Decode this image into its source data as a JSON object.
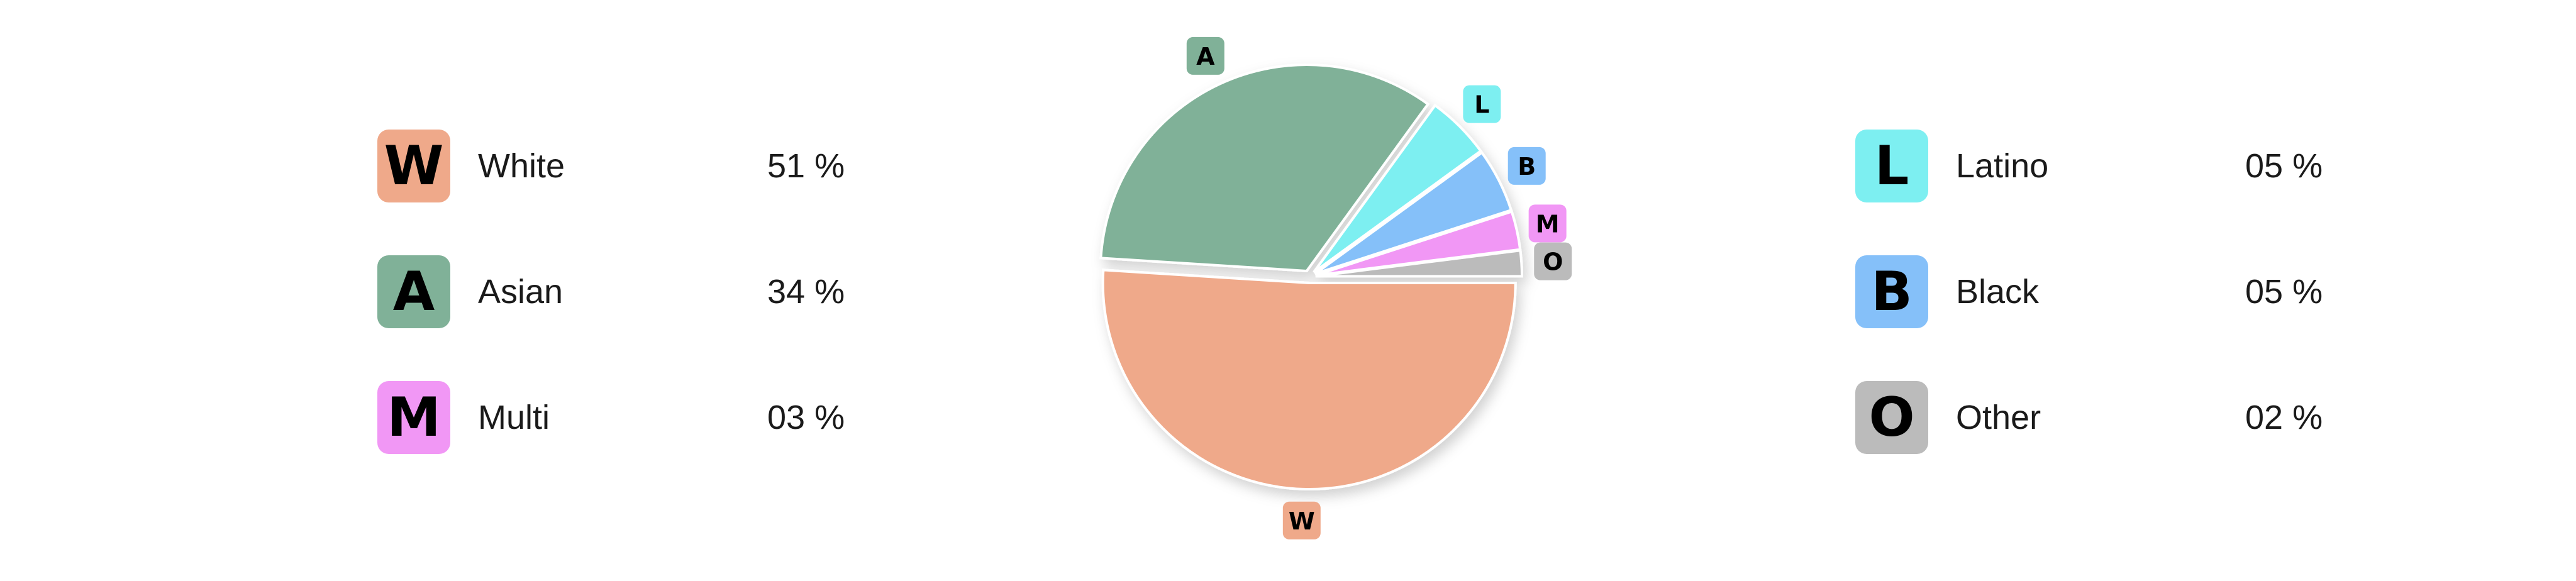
{
  "chart_data": {
    "type": "pie",
    "series": [
      {
        "code": "W",
        "name": "White",
        "value": 51,
        "label": "51 %",
        "color": "#EFA98A"
      },
      {
        "code": "A",
        "name": "Asian",
        "value": 34,
        "label": "34 %",
        "color": "#80B198"
      },
      {
        "code": "L",
        "name": "Latino",
        "value": 5,
        "label": "05 %",
        "color": "#7DEFF1"
      },
      {
        "code": "B",
        "name": "Black",
        "value": 5,
        "label": "05 %",
        "color": "#85C0F9"
      },
      {
        "code": "M",
        "name": "Multi",
        "value": 3,
        "label": "03 %",
        "color": "#F197F5"
      },
      {
        "code": "O",
        "name": "Other",
        "value": 2,
        "label": "02 %",
        "color": "#BBBBBB"
      }
    ],
    "legend_left": [
      "W",
      "A",
      "M"
    ],
    "legend_right": [
      "L",
      "B",
      "O"
    ],
    "exploded": true
  },
  "legend": {
    "left": [
      {
        "code": "W",
        "name": "White",
        "pct": "51 %"
      },
      {
        "code": "A",
        "name": "Asian",
        "pct": "34 %"
      },
      {
        "code": "M",
        "name": "Multi",
        "pct": "03 %"
      }
    ],
    "right": [
      {
        "code": "L",
        "name": "Latino",
        "pct": "05 %"
      },
      {
        "code": "B",
        "name": "Black",
        "pct": "05 %"
      },
      {
        "code": "O",
        "name": "Other",
        "pct": "02 %"
      }
    ]
  }
}
